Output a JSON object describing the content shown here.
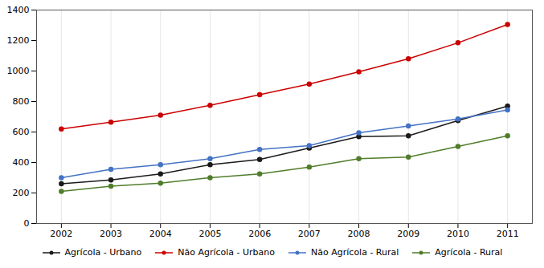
{
  "chart_data": {
    "type": "line",
    "x": [
      2002,
      2003,
      2004,
      2005,
      2006,
      2007,
      2008,
      2009,
      2010,
      2011
    ],
    "series": [
      {
        "name": "Agrícola - Urbano",
        "color": "#1a1a1a",
        "values": [
          260,
          285,
          325,
          385,
          420,
          495,
          570,
          575,
          675,
          770
        ]
      },
      {
        "name": "Não Agrícola - Urbano",
        "color": "#cc0000",
        "values": [
          620,
          665,
          710,
          775,
          845,
          915,
          995,
          1080,
          1185,
          1305
        ]
      },
      {
        "name": "Não Agrícola - Rural",
        "color": "#4472c4",
        "values": [
          300,
          355,
          385,
          425,
          485,
          510,
          595,
          640,
          685,
          745
        ]
      },
      {
        "name": "Agrícola - Rural",
        "color": "#507d2a",
        "values": [
          210,
          245,
          265,
          300,
          325,
          370,
          425,
          435,
          505,
          575
        ]
      }
    ],
    "xlim": [
      2001.5,
      2011.5
    ],
    "xticks": [
      2002,
      2003,
      2004,
      2005,
      2006,
      2007,
      2008,
      2009,
      2010,
      2011
    ],
    "ylim": [
      0,
      1400
    ],
    "yticks": [
      0,
      200,
      400,
      600,
      800,
      1000,
      1200,
      1400
    ],
    "grid": "x",
    "legend": "bottom",
    "marker": "circle"
  }
}
